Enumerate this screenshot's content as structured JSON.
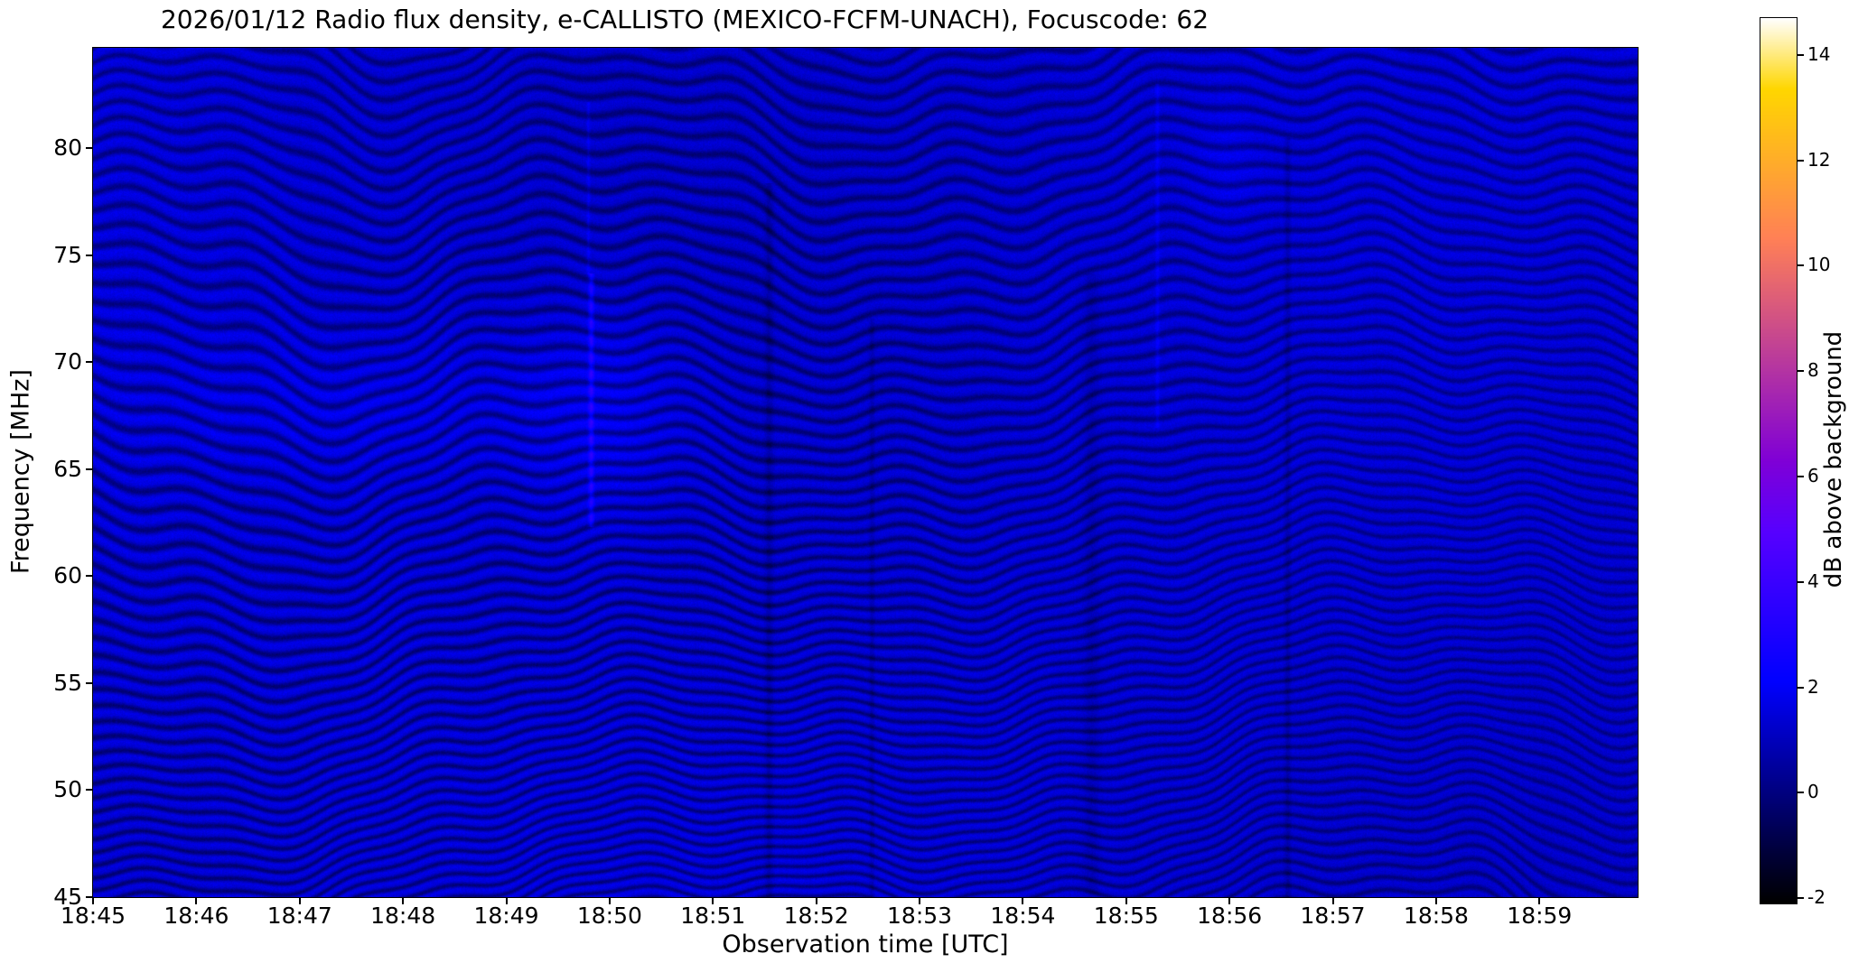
{
  "chart_data": {
    "type": "heatmap",
    "title": "2026/01/12  Radio flux density, e-CALLISTO (MEXICO-FCFM-UNACH), Focuscode: 62",
    "date": "2026/01/12",
    "instrument": "e-CALLISTO",
    "station": "MEXICO-FCFM-UNACH",
    "focuscode": "62",
    "xlabel": "Observation time [UTC]",
    "ylabel": "Frequency [MHz]",
    "x_ticks": [
      "18:45",
      "18:46",
      "18:47",
      "18:48",
      "18:49",
      "18:50",
      "18:51",
      "18:52",
      "18:53",
      "18:54",
      "18:55",
      "18:56",
      "18:57",
      "18:58",
      "18:59"
    ],
    "x_start": "18:45",
    "x_end_approx": "19:00",
    "y_ticks": [
      45,
      50,
      55,
      60,
      65,
      70,
      75,
      80
    ],
    "y_min": 45,
    "y_max": 84.7,
    "grid": false,
    "legend": false,
    "colorbar": {
      "label": "dB above background",
      "ticks": [
        -2,
        0,
        2,
        4,
        6,
        8,
        10,
        12,
        14
      ],
      "min": -2.1,
      "max": 14.7,
      "colormap": "gnuplot2",
      "position": "right"
    },
    "appearance": {
      "background_db_range": [
        0,
        2
      ],
      "dominant_color": "#0000a8",
      "low_color": "#000000",
      "high_color": "#ffffff",
      "pattern": "quiet spectrogram: dark-blue background with wavy dark interference ripple bands over the whole band, a few faint bright and dark vertical RFI streaks, no solar radio burst"
    }
  }
}
